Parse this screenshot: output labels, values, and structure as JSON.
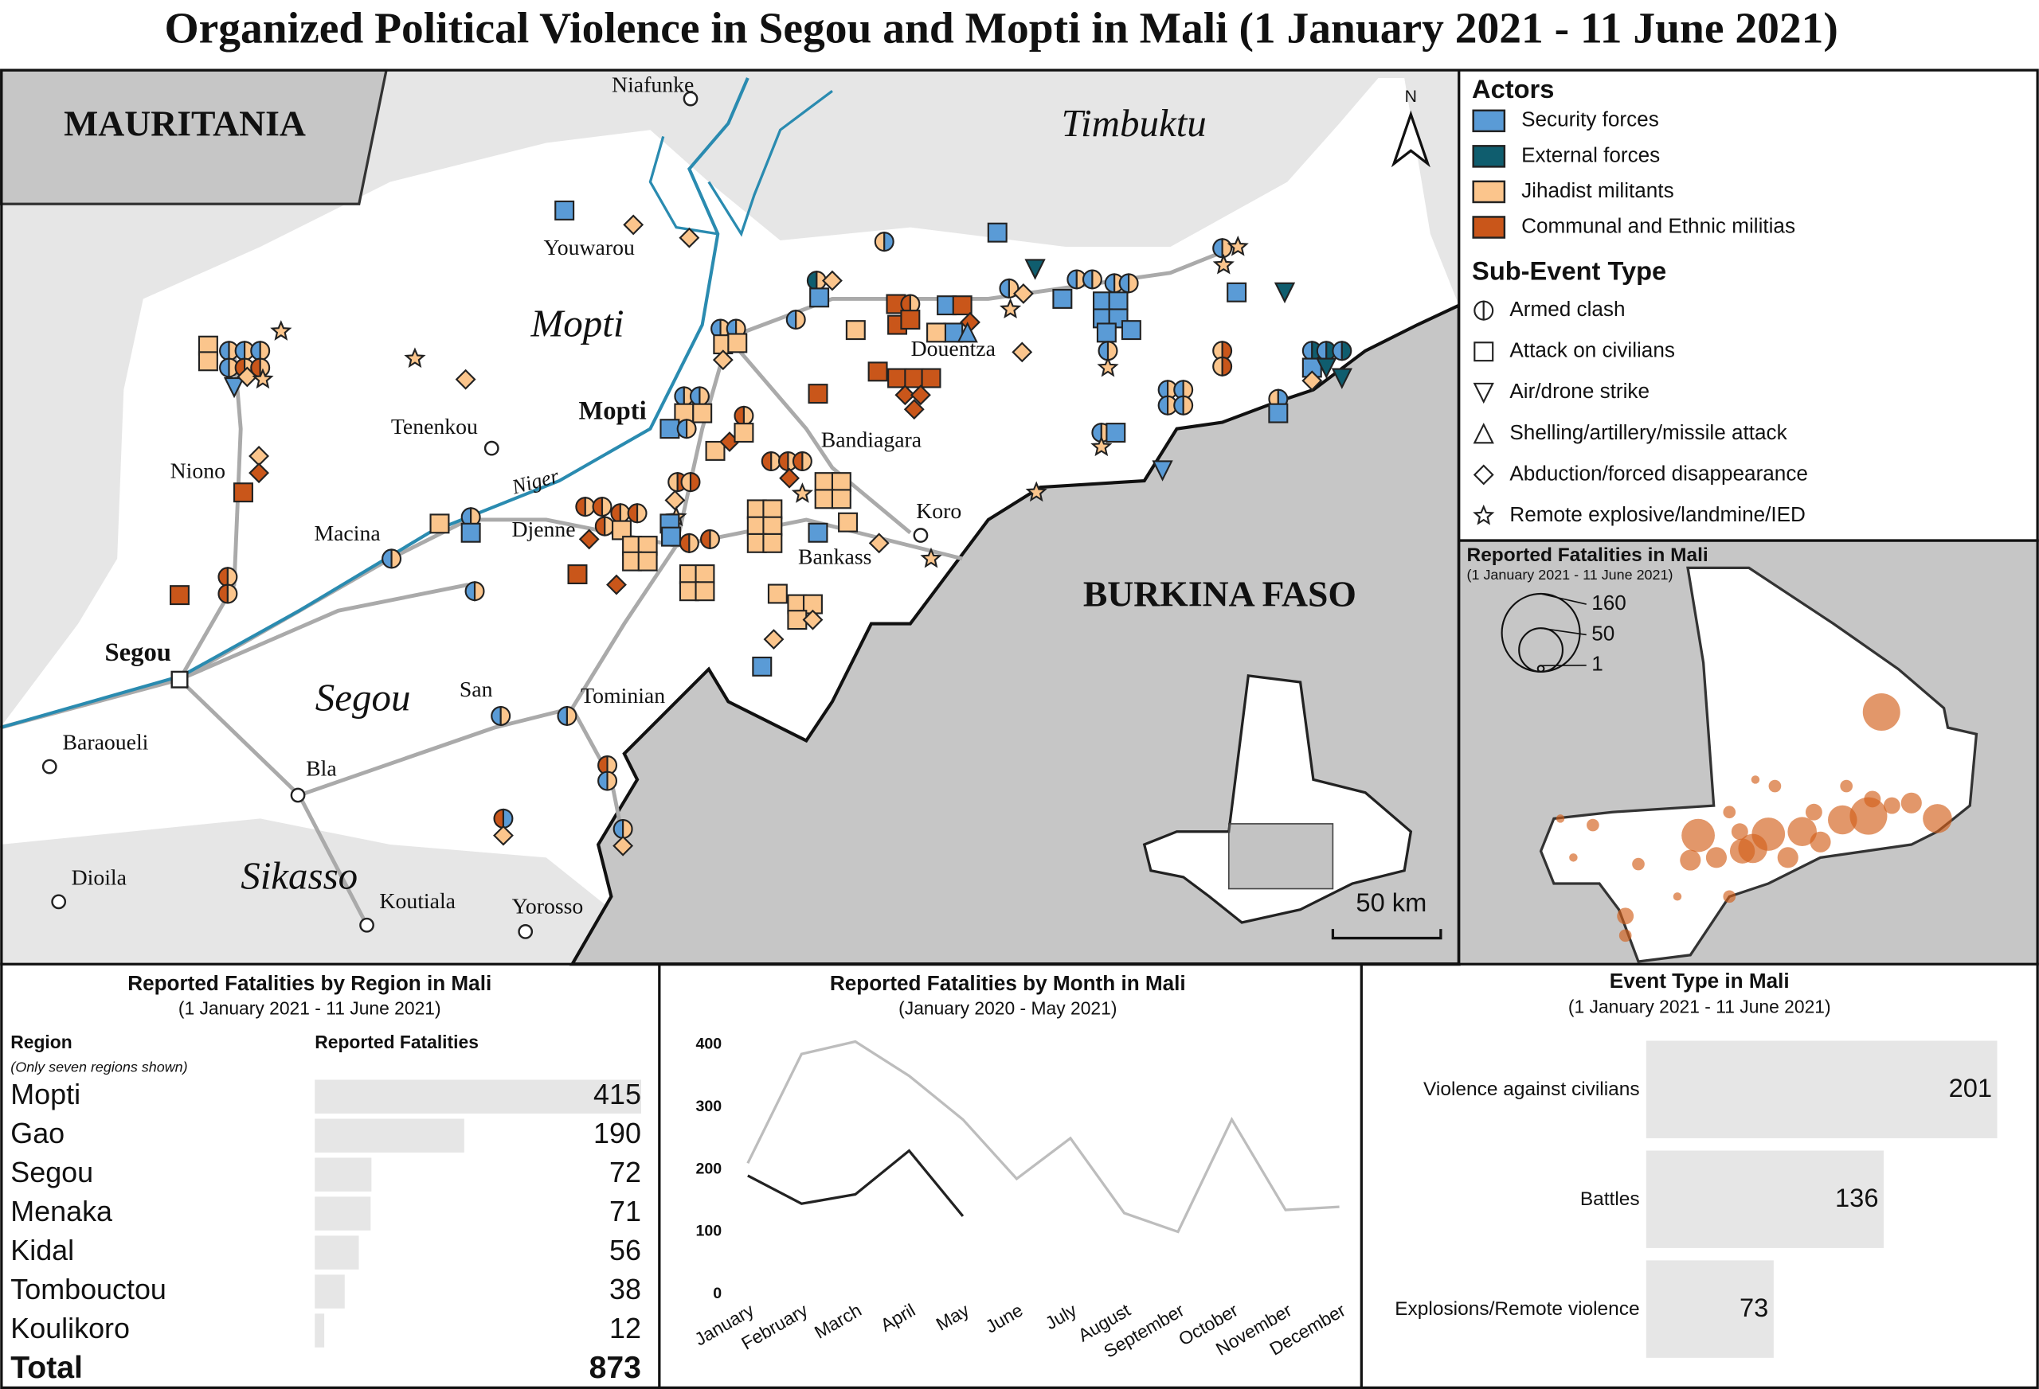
{
  "title": "Organized Political Violence in Segou and Mopti in Mali (1 January 2021 - 11 June 2021)",
  "map": {
    "countries": [
      "MAURITANIA",
      "BURKINA FASO"
    ],
    "regions": [
      "Mopti",
      "Timbuktu",
      "Segou",
      "Sikasso"
    ],
    "river": "Niger",
    "north": "N",
    "scale": "50 km",
    "places": [
      "Niafunke",
      "Youwarou",
      "Tenenkou",
      "Mopti",
      "Niono",
      "Macina",
      "Djenne",
      "Bandiagara",
      "Douentza",
      "Koro",
      "Bankass",
      "Segou",
      "Baraoueli",
      "Bla",
      "San",
      "Tominian",
      "Dioila",
      "Koutiala",
      "Yorosso"
    ]
  },
  "legend": {
    "actors_title": "Actors",
    "actors": [
      {
        "name": "Security forces",
        "color": "#5a9bd6"
      },
      {
        "name": "External forces",
        "color": "#0f5d6e"
      },
      {
        "name": "Jihadist militants",
        "color": "#fbc58c"
      },
      {
        "name": "Communal and Ethnic militias",
        "color": "#c9561a"
      }
    ],
    "types_title": "Sub-Event Type",
    "types": [
      "Armed clash",
      "Attack on civilians",
      "Air/drone strike",
      "Shelling/artillery/missile attack",
      "Abduction/forced disappearance",
      "Remote explosive/landmine/IED"
    ]
  },
  "inset": {
    "title": "Reported Fatalities in Mali",
    "subtitle": "(1 January 2021 - 11 June 2021)",
    "sizes": [
      160,
      50,
      1
    ],
    "color": "#d2601a"
  },
  "chart_data": [
    {
      "type": "table-bar",
      "title": "Reported Fatalities by Region in Mali",
      "subtitle": "(1 January 2021 - 11 June 2021)",
      "column_headers": [
        "Region",
        "Reported Fatalities"
      ],
      "note": "(Only seven regions shown)",
      "categories": [
        "Mopti",
        "Gao",
        "Segou",
        "Menaka",
        "Kidal",
        "Tombouctou",
        "Koulikoro"
      ],
      "values": [
        415,
        190,
        72,
        71,
        56,
        38,
        12
      ],
      "total_label": "Total",
      "total": 873,
      "color": "#e6e6e6"
    },
    {
      "type": "line",
      "title": "Reported Fatalities by Month in Mali",
      "subtitle": "(January 2020 - May 2021)",
      "categories": [
        "January",
        "February",
        "March",
        "April",
        "May",
        "June",
        "July",
        "August",
        "September",
        "October",
        "November",
        "December"
      ],
      "series": [
        {
          "color": "#bdbdbd",
          "values": [
            210,
            385,
            405,
            350,
            280,
            185,
            250,
            130,
            100,
            280,
            135,
            140
          ]
        },
        {
          "color": "#222222",
          "values": [
            190,
            145,
            160,
            230,
            125,
            null,
            null,
            null,
            null,
            null,
            null,
            null
          ]
        }
      ],
      "ylim": [
        0,
        400
      ],
      "yticks": [
        0,
        100,
        200,
        300,
        400
      ]
    },
    {
      "type": "hbar",
      "title": "Event Type in Mali",
      "subtitle": "(1 January 2021 - 11 June 2021)",
      "categories": [
        "Violence against civilians",
        "Battles",
        "Explosions/Remote violence"
      ],
      "values": [
        201,
        136,
        73
      ],
      "color": "#e6e6e6"
    }
  ]
}
